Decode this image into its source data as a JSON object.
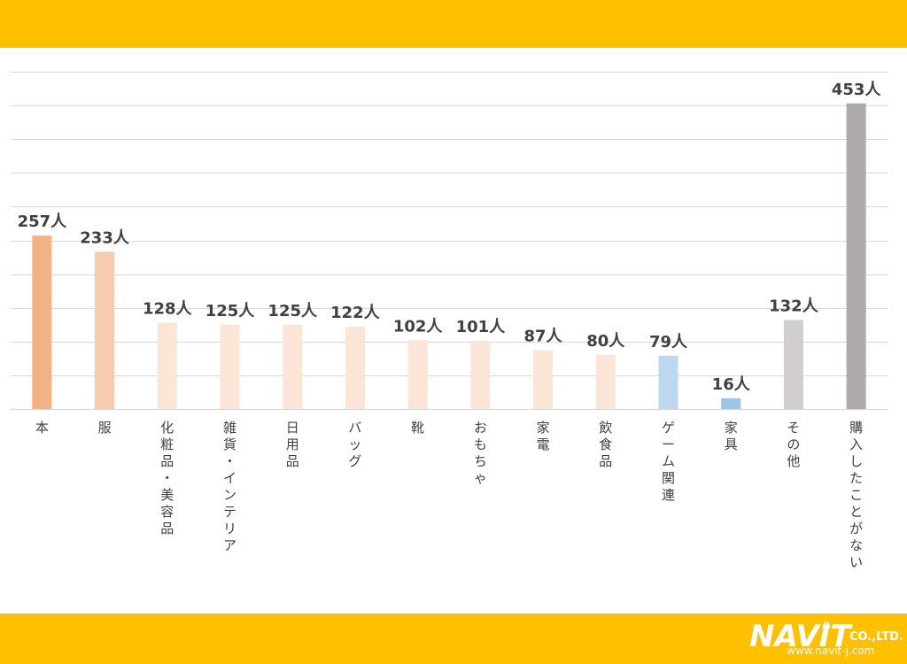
{
  "colors": {
    "banner": "#FFC000",
    "text": "#404040",
    "grid": "#D9D9D9"
  },
  "logo": {
    "word": "NAVIT",
    "company": "CO.,LTD.",
    "url": "www.navit-j.com"
  },
  "chart_data": {
    "type": "bar",
    "unit_suffix": "人",
    "categories": [
      "本",
      "服",
      "化粧品・美容品",
      "雑貨・インテリア",
      "日用品",
      "バッグ",
      "靴",
      "おもちゃ",
      "家電",
      "飲食品",
      "ゲーム関連",
      "家具",
      "その他",
      "購入したことがない"
    ],
    "values": [
      257,
      233,
      128,
      125,
      125,
      122,
      102,
      101,
      87,
      80,
      79,
      16,
      132,
      453
    ],
    "bar_colors": [
      "#F4B183",
      "#F8CBAD",
      "#FBE5D6",
      "#FBE5D6",
      "#FBE5D6",
      "#FBE5D6",
      "#FBE5D6",
      "#FBE5D6",
      "#FBE5D6",
      "#FBE5D6",
      "#BDD7EE",
      "#9DC3E6",
      "#D0CECE",
      "#AEAAAA"
    ],
    "ylim": [
      0,
      500
    ],
    "grid": true,
    "gridline_step": 50,
    "category_text_orientation": "vertical",
    "title": "",
    "xlabel": "",
    "ylabel": ""
  }
}
